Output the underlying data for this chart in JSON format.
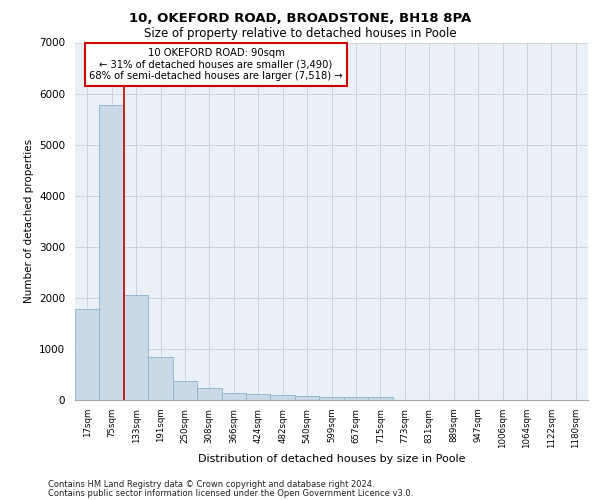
{
  "title1": "10, OKEFORD ROAD, BROADSTONE, BH18 8PA",
  "title2": "Size of property relative to detached houses in Poole",
  "xlabel": "Distribution of detached houses by size in Poole",
  "ylabel": "Number of detached properties",
  "bar_color": "#c9d9e8",
  "bar_edge_color": "#8ab4cc",
  "grid_color": "#c8d4e0",
  "background_color": "#eaf0f6",
  "annotation_box_color": "#ffffff",
  "annotation_border_color": "#cc0000",
  "property_line_color": "#cc0000",
  "footer1": "Contains HM Land Registry data © Crown copyright and database right 2024.",
  "footer2": "Contains public sector information licensed under the Open Government Licence v3.0.",
  "annotation_line1": "10 OKEFORD ROAD: 90sqm",
  "annotation_line2": "← 31% of detached houses are smaller (3,490)",
  "annotation_line3": "68% of semi-detached houses are larger (7,518) →",
  "property_sqm": 90,
  "bin_labels": [
    "17sqm",
    "75sqm",
    "133sqm",
    "191sqm",
    "250sqm",
    "308sqm",
    "366sqm",
    "424sqm",
    "482sqm",
    "540sqm",
    "599sqm",
    "657sqm",
    "715sqm",
    "773sqm",
    "831sqm",
    "889sqm",
    "947sqm",
    "1006sqm",
    "1064sqm",
    "1122sqm",
    "1180sqm"
  ],
  "bar_heights": [
    1780,
    5780,
    2060,
    840,
    380,
    230,
    130,
    115,
    90,
    75,
    65,
    55,
    50,
    0,
    0,
    0,
    0,
    0,
    0,
    0
  ],
  "ylim": [
    0,
    7000
  ],
  "yticks": [
    0,
    1000,
    2000,
    3000,
    4000,
    5000,
    6000,
    7000
  ],
  "property_bar_index": 1,
  "figsize": [
    6.0,
    5.0
  ],
  "dpi": 100
}
